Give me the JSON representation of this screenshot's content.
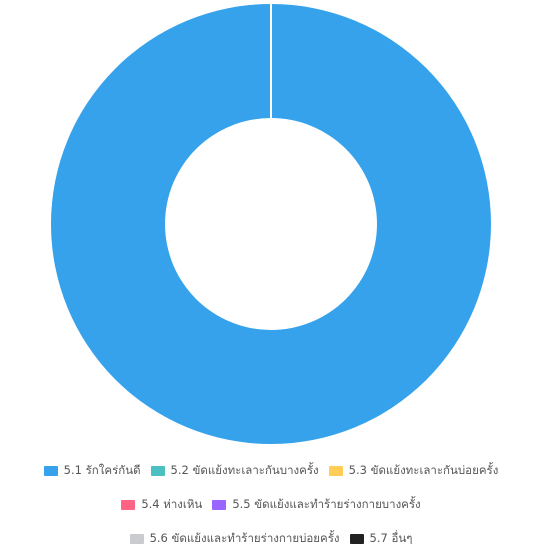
{
  "chart_data": {
    "type": "pie",
    "variant": "donut",
    "title": "",
    "categories": [
      "5.1 รักใคร่กันดี",
      "5.2 ขัดแย้งทะเลาะกันบางครั้ง",
      "5.3 ขัดแย้งทะเลาะกันบ่อยครั้ง",
      "5.4 ห่างเหิน",
      "5.5 ขัดแย้งและทำร้ายร่างกายบางครั้ง",
      "5.6 ขัดแย้งและทำร้ายร่างกายบ่อยครั้ง",
      "5.7 อื่นๆ"
    ],
    "values": [
      100,
      0,
      0,
      0,
      0,
      0,
      0
    ],
    "colors": [
      "#36a2eb",
      "#4bc0c0",
      "#ffcd56",
      "#ff6384",
      "#9966ff",
      "#c9cbcf",
      "#222222"
    ],
    "legend_position": "bottom"
  }
}
